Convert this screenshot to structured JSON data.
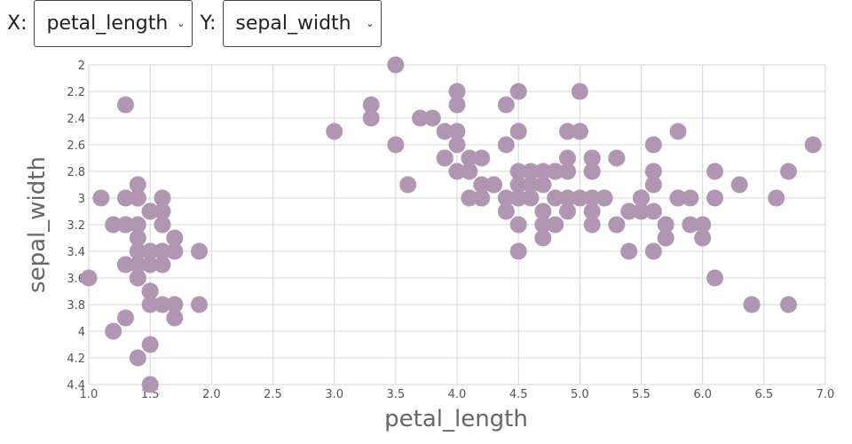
{
  "controls": {
    "x_label": "X:",
    "x_selected": "petal_length",
    "y_label": "Y:",
    "y_selected": "sepal_width"
  },
  "chart_data": {
    "type": "scatter",
    "title": "",
    "xlabel": "petal_length",
    "ylabel": "sepal_width",
    "xlim": [
      1.0,
      7.0
    ],
    "ylim": [
      2.0,
      4.4
    ],
    "y_axis_inverted": true,
    "x_ticks": [
      "1.0",
      "1.5",
      "2.0",
      "2.5",
      "3.0",
      "3.5",
      "4.0",
      "4.5",
      "5.0",
      "5.5",
      "6.0",
      "6.5",
      "7.0"
    ],
    "y_ticks": [
      "2",
      "2.2",
      "2.4",
      "2.6",
      "2.8",
      "3",
      "3.2",
      "3.4",
      "3.6",
      "3.8",
      "4",
      "4.2",
      "4.4"
    ],
    "grid": true,
    "point_color": "#b096b2",
    "points": [
      [
        1.4,
        3.5
      ],
      [
        1.4,
        3.0
      ],
      [
        1.3,
        3.2
      ],
      [
        1.5,
        3.1
      ],
      [
        1.4,
        3.6
      ],
      [
        1.7,
        3.9
      ],
      [
        1.4,
        3.4
      ],
      [
        1.5,
        3.4
      ],
      [
        1.4,
        2.9
      ],
      [
        1.5,
        3.1
      ],
      [
        1.5,
        3.7
      ],
      [
        1.6,
        3.4
      ],
      [
        1.4,
        3.0
      ],
      [
        1.1,
        3.0
      ],
      [
        1.2,
        4.0
      ],
      [
        1.5,
        4.4
      ],
      [
        1.3,
        3.9
      ],
      [
        1.4,
        3.5
      ],
      [
        1.7,
        3.8
      ],
      [
        1.5,
        3.8
      ],
      [
        1.7,
        3.4
      ],
      [
        1.5,
        3.7
      ],
      [
        1.0,
        3.6
      ],
      [
        1.7,
        3.3
      ],
      [
        1.9,
        3.4
      ],
      [
        1.6,
        3.0
      ],
      [
        1.6,
        3.4
      ],
      [
        1.5,
        3.5
      ],
      [
        1.4,
        3.4
      ],
      [
        1.6,
        3.2
      ],
      [
        1.6,
        3.1
      ],
      [
        1.5,
        3.4
      ],
      [
        1.5,
        4.1
      ],
      [
        1.4,
        4.2
      ],
      [
        1.5,
        3.1
      ],
      [
        1.2,
        3.2
      ],
      [
        1.3,
        3.5
      ],
      [
        1.4,
        3.6
      ],
      [
        1.3,
        3.0
      ],
      [
        1.5,
        3.4
      ],
      [
        1.3,
        3.5
      ],
      [
        1.3,
        2.3
      ],
      [
        1.3,
        3.2
      ],
      [
        1.6,
        3.5
      ],
      [
        1.9,
        3.8
      ],
      [
        1.4,
        3.0
      ],
      [
        1.6,
        3.8
      ],
      [
        1.4,
        3.2
      ],
      [
        1.5,
        3.7
      ],
      [
        1.4,
        3.3
      ],
      [
        4.7,
        3.2
      ],
      [
        4.5,
        3.2
      ],
      [
        4.9,
        3.1
      ],
      [
        4.0,
        2.3
      ],
      [
        4.6,
        2.8
      ],
      [
        4.5,
        2.8
      ],
      [
        4.7,
        3.3
      ],
      [
        3.3,
        2.4
      ],
      [
        4.6,
        2.9
      ],
      [
        3.9,
        2.7
      ],
      [
        3.5,
        2.0
      ],
      [
        4.2,
        3.0
      ],
      [
        4.0,
        2.2
      ],
      [
        4.7,
        2.9
      ],
      [
        3.6,
        2.9
      ],
      [
        4.4,
        3.1
      ],
      [
        4.5,
        3.0
      ],
      [
        4.1,
        2.7
      ],
      [
        4.5,
        2.2
      ],
      [
        3.9,
        2.5
      ],
      [
        4.8,
        3.2
      ],
      [
        4.0,
        2.8
      ],
      [
        4.9,
        2.5
      ],
      [
        4.7,
        2.8
      ],
      [
        4.3,
        2.9
      ],
      [
        4.4,
        3.0
      ],
      [
        4.8,
        2.8
      ],
      [
        5.0,
        3.0
      ],
      [
        4.5,
        2.9
      ],
      [
        3.5,
        2.6
      ],
      [
        3.8,
        2.4
      ],
      [
        3.7,
        2.4
      ],
      [
        3.9,
        2.7
      ],
      [
        5.1,
        2.7
      ],
      [
        4.5,
        3.0
      ],
      [
        4.5,
        3.4
      ],
      [
        4.7,
        3.1
      ],
      [
        4.4,
        2.3
      ],
      [
        4.1,
        3.0
      ],
      [
        4.0,
        2.5
      ],
      [
        4.4,
        2.6
      ],
      [
        4.6,
        3.0
      ],
      [
        4.0,
        2.6
      ],
      [
        3.3,
        2.3
      ],
      [
        4.2,
        2.7
      ],
      [
        4.2,
        3.0
      ],
      [
        4.2,
        2.9
      ],
      [
        4.3,
        2.9
      ],
      [
        3.0,
        2.5
      ],
      [
        4.1,
        2.8
      ],
      [
        6.0,
        3.3
      ],
      [
        5.1,
        2.7
      ],
      [
        5.9,
        3.0
      ],
      [
        5.6,
        2.9
      ],
      [
        5.8,
        3.0
      ],
      [
        6.6,
        3.0
      ],
      [
        4.5,
        2.5
      ],
      [
        6.3,
        2.9
      ],
      [
        5.8,
        2.5
      ],
      [
        6.1,
        3.6
      ],
      [
        5.1,
        3.2
      ],
      [
        5.3,
        2.7
      ],
      [
        5.5,
        3.0
      ],
      [
        5.0,
        2.5
      ],
      [
        5.1,
        2.8
      ],
      [
        5.3,
        3.2
      ],
      [
        5.5,
        3.0
      ],
      [
        6.7,
        3.8
      ],
      [
        6.9,
        2.6
      ],
      [
        5.0,
        2.2
      ],
      [
        5.7,
        3.2
      ],
      [
        4.9,
        2.8
      ],
      [
        6.7,
        2.8
      ],
      [
        4.9,
        2.7
      ],
      [
        5.7,
        3.3
      ],
      [
        6.0,
        3.2
      ],
      [
        4.8,
        2.8
      ],
      [
        4.9,
        3.0
      ],
      [
        5.6,
        2.8
      ],
      [
        5.8,
        3.0
      ],
      [
        6.1,
        2.8
      ],
      [
        6.4,
        3.8
      ],
      [
        5.6,
        2.8
      ],
      [
        5.1,
        2.8
      ],
      [
        5.6,
        2.6
      ],
      [
        6.1,
        3.0
      ],
      [
        5.6,
        3.4
      ],
      [
        5.5,
        3.1
      ],
      [
        4.8,
        3.0
      ],
      [
        5.4,
        3.1
      ],
      [
        5.6,
        3.1
      ],
      [
        5.1,
        3.1
      ],
      [
        5.1,
        2.7
      ],
      [
        5.9,
        3.2
      ],
      [
        5.7,
        3.3
      ],
      [
        5.2,
        3.0
      ],
      [
        5.0,
        2.5
      ],
      [
        5.2,
        3.0
      ],
      [
        5.4,
        3.4
      ],
      [
        5.1,
        3.0
      ]
    ]
  }
}
